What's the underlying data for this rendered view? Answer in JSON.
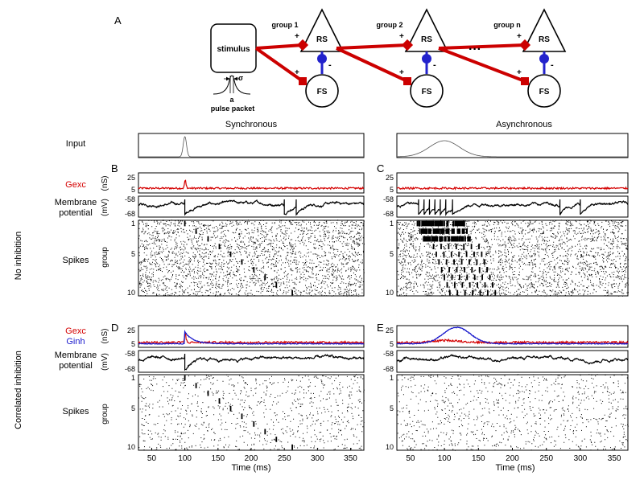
{
  "panel_labels": {
    "A": "A",
    "B": "B",
    "C": "C",
    "D": "D",
    "E": "E"
  },
  "schematic": {
    "stimulus": "stimulus",
    "pulse_a": "a",
    "pulse_sigma": "σ",
    "pulse_caption": "pulse packet",
    "groups": [
      "group 1",
      "group 2",
      "group n"
    ],
    "rs": "RS",
    "fs": "FS",
    "plus": "+",
    "minus": "-",
    "ellipsis": "···"
  },
  "column_titles": {
    "sync": "Synchronous",
    "async": "Asynchronous"
  },
  "row_labels": {
    "input": "Input",
    "gexc": "Gexc",
    "ginh": "Ginh",
    "membrane1": "Membrane",
    "membrane2": "potential",
    "spikes": "Spikes",
    "group": "group",
    "no_inhibition": "No inhibition",
    "correlated_inhibition": "Correlated inhibition",
    "ns_unit": "(nS)",
    "mv_unit": "(mV)"
  },
  "axis": {
    "xlabel": "Time (ms)",
    "xticks": [
      "50",
      "100",
      "150",
      "200",
      "250",
      "300",
      "350"
    ],
    "g_ticks": [
      "25",
      "5"
    ],
    "v_ticks": [
      "-58",
      "-68"
    ],
    "group_ticks": [
      "1",
      "5",
      "10"
    ]
  },
  "colors": {
    "exc": "#d40000",
    "inh": "#1a1acc",
    "stim": "#cc0000",
    "fs_link": "#2222cc"
  },
  "chart_data": {
    "type": "line",
    "xlabel": "Time (ms)",
    "xlim": [
      30,
      370
    ],
    "sync_input_center_ms": 100,
    "async_input_center_ms": 100,
    "sync_spike_volley_times_ms": [
      100,
      117,
      135,
      152,
      169,
      186,
      204,
      221,
      238,
      262
    ],
    "async_burst_times_ms": [
      65,
      75,
      85,
      95,
      105,
      115,
      125,
      135,
      145,
      155
    ]
  }
}
